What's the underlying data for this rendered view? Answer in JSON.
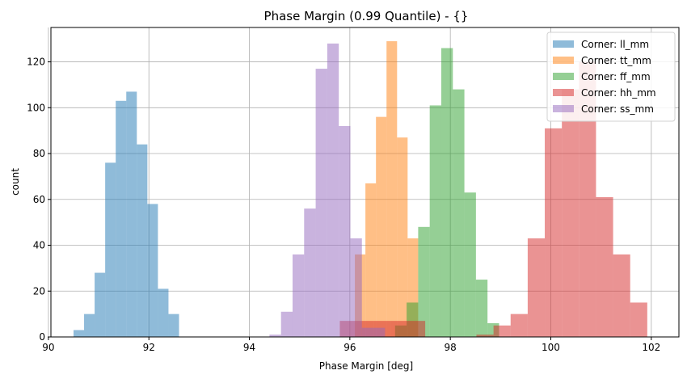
{
  "chart_data": {
    "type": "bar",
    "title": "Phase Margin (0.99 Quantile) - {}",
    "xlabel": "Phase Margin [deg]",
    "ylabel": "count",
    "xlim": [
      90.05,
      102.55
    ],
    "ylim": [
      0,
      135
    ],
    "xticks": [
      90,
      92,
      94,
      96,
      98,
      100,
      102
    ],
    "yticks": [
      0,
      20,
      40,
      60,
      80,
      100,
      120
    ],
    "grid": true,
    "legend_position": "top-right",
    "series": [
      {
        "name": "Corner: ll_mm",
        "color": "#1f77b4",
        "bin_edges": [
          90.5,
          90.71,
          90.92,
          91.13,
          91.34,
          91.55,
          91.76,
          91.97,
          92.18,
          92.39,
          92.6
        ],
        "counts": [
          3,
          10,
          28,
          76,
          103,
          107,
          84,
          58,
          21,
          10
        ]
      },
      {
        "name": "Corner: tt_mm",
        "color": "#ff7f0e",
        "bin_edges": [
          96.1,
          96.31,
          96.52,
          96.73,
          96.94,
          97.15,
          97.36
        ],
        "counts": [
          36,
          67,
          96,
          129,
          87,
          43
        ]
      },
      {
        "name": "Corner: ff_mm",
        "color": "#2ca02c",
        "bin_edges": [
          96.9,
          97.13,
          97.36,
          97.59,
          97.82,
          98.05,
          98.28,
          98.51,
          98.74,
          98.97
        ],
        "counts": [
          5,
          15,
          48,
          101,
          126,
          108,
          63,
          25,
          6
        ]
      },
      {
        "name": "Corner: hh_mm",
        "color": "#d62728",
        "bin_edges": [
          95.8,
          96.14,
          96.48,
          96.82,
          97.16,
          97.5,
          97.84,
          98.18,
          98.52,
          98.86,
          99.2,
          99.54,
          99.88,
          100.22,
          100.56,
          100.9,
          101.24,
          101.58,
          101.92
        ],
        "counts": [
          7,
          7,
          7,
          7,
          7,
          0,
          0,
          0,
          1,
          5,
          10,
          43,
          91,
          108,
          120,
          61,
          36,
          15
        ]
      },
      {
        "name": "Corner: ss_mm",
        "color": "#9467bd",
        "bin_edges": [
          94.4,
          94.63,
          94.86,
          95.09,
          95.32,
          95.55,
          95.78,
          96.01,
          96.24,
          96.47,
          96.7
        ],
        "counts": [
          1,
          11,
          36,
          56,
          117,
          128,
          92,
          43,
          4,
          4
        ]
      }
    ]
  }
}
